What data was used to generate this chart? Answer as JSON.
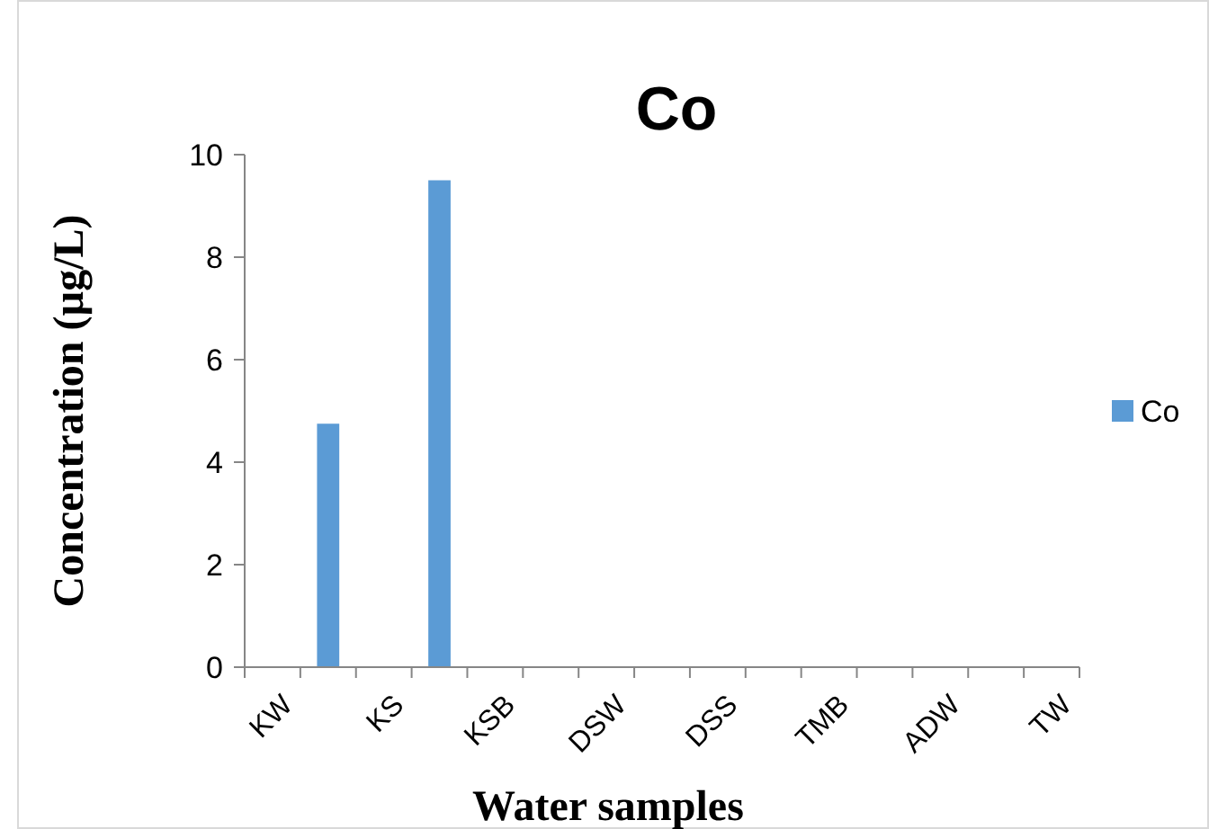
{
  "chart_data": {
    "type": "bar",
    "title": "Co",
    "xlabel": "Water samples",
    "ylabel": "Concentration (µg/L)",
    "categories": [
      "KW",
      null,
      "KS",
      null,
      "KSB",
      null,
      "DSW",
      null,
      "DSS",
      null,
      "TMB",
      null,
      "ADW",
      null,
      "TW"
    ],
    "series": [
      {
        "name": "Co",
        "color": "#5b9bd5",
        "values": [
          0,
          4.75,
          0,
          9.5,
          0,
          0,
          0,
          0,
          0,
          0,
          0,
          0,
          0,
          0,
          0
        ]
      }
    ],
    "ylim": [
      0,
      10
    ],
    "yticks": [
      0,
      2,
      4,
      6,
      8,
      10
    ],
    "grid": false,
    "legend": "right"
  }
}
